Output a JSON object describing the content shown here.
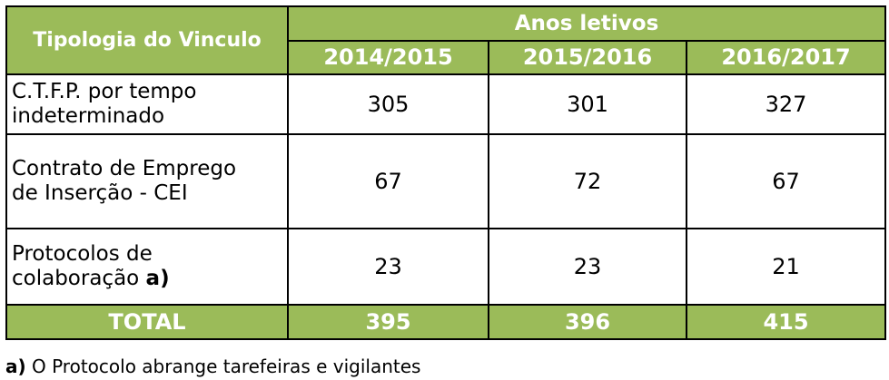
{
  "table": {
    "header": {
      "row_label": "Tipologia do Vinculo",
      "group_label": "Anos letivos",
      "years": [
        "2014/2015",
        "2015/2016",
        "2016/2017"
      ]
    },
    "rows": [
      {
        "label_line1": "C.T.F.P. por tempo",
        "label_line2": "indeterminado",
        "label_suffix": "",
        "values": [
          "305",
          "301",
          "327"
        ]
      },
      {
        "label_line1": "Contrato de Emprego",
        "label_line2": "de Inserção - CEI",
        "label_suffix": "",
        "values": [
          "67",
          "72",
          "67"
        ]
      },
      {
        "label_line1": "Protocolos de",
        "label_line2": "colaboração ",
        "label_suffix": "a)",
        "values": [
          "23",
          "23",
          "21"
        ]
      }
    ],
    "total": {
      "label": "TOTAL",
      "values": [
        "395",
        "396",
        "415"
      ]
    }
  },
  "footnote": {
    "marker": "a)",
    "text": " O Protocolo abrange  tarefeiras e  vigilantes"
  },
  "colors": {
    "header_bg": "#9bbb59",
    "header_text": "#ffffff"
  }
}
